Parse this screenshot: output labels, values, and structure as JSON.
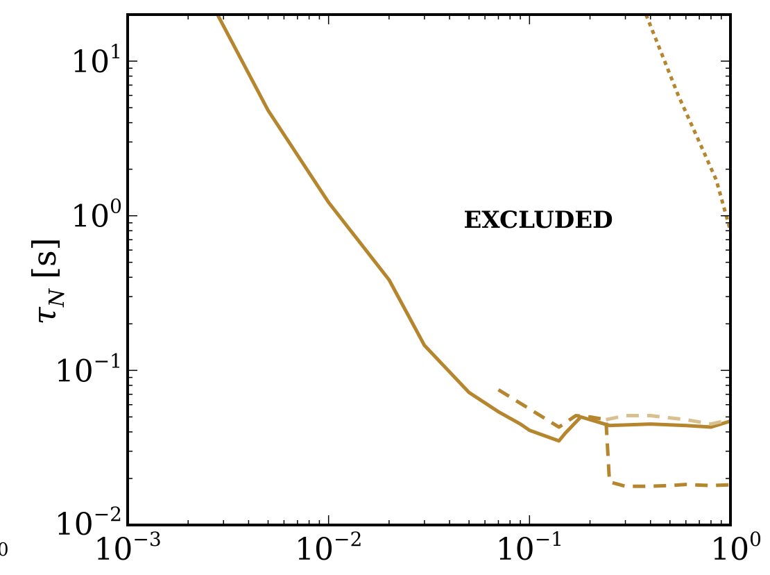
{
  "chart_data": {
    "type": "line",
    "xscale": "log",
    "yscale": "log",
    "xlim": [
      0.001,
      1
    ],
    "ylim": [
      0.01,
      20
    ],
    "xticks": [
      {
        "value": 0.001,
        "base": "10",
        "exp": "−3"
      },
      {
        "value": 0.01,
        "base": "10",
        "exp": "−2"
      },
      {
        "value": 0.1,
        "base": "10",
        "exp": "−1"
      },
      {
        "value": 1,
        "base": "10",
        "exp": "0"
      }
    ],
    "yticks": [
      {
        "value": 0.01,
        "base": "10",
        "exp": "−2"
      },
      {
        "value": 0.1,
        "base": "10",
        "exp": "−1"
      },
      {
        "value": 1,
        "base": "10",
        "exp": "0"
      },
      {
        "value": 10,
        "base": "10",
        "exp": "1"
      }
    ],
    "ylabel_symbol": "τ",
    "ylabel_subscript": "N",
    "ylabel_unit": "[s]",
    "clipped_left_tick": "0",
    "annotation": "EXCLUDED",
    "colors": {
      "main": "#b5862e",
      "light": "#d9c08f",
      "axis": "#000000"
    },
    "series": [
      {
        "style": "solid",
        "color": "#b5862e",
        "points": [
          [
            0.0028,
            20.0
          ],
          [
            0.005,
            4.8
          ],
          [
            0.01,
            1.22
          ],
          [
            0.02,
            0.385
          ],
          [
            0.03,
            0.145
          ],
          [
            0.05,
            0.072
          ],
          [
            0.07,
            0.054
          ],
          [
            0.09,
            0.045
          ],
          [
            0.1,
            0.041
          ],
          [
            0.14,
            0.035
          ],
          [
            0.15,
            0.039
          ],
          [
            0.18,
            0.05
          ],
          [
            0.25,
            0.044
          ],
          [
            0.4,
            0.045
          ],
          [
            0.6,
            0.044
          ],
          [
            0.8,
            0.043
          ],
          [
            1.0,
            0.047
          ]
        ]
      },
      {
        "style": "dashed",
        "color": "#b5862e",
        "points": [
          [
            0.07,
            0.075
          ],
          [
            0.14,
            0.043
          ],
          [
            0.17,
            0.051
          ],
          [
            0.2,
            0.05
          ],
          [
            0.24,
            0.048
          ],
          [
            0.25,
            0.019
          ],
          [
            0.3,
            0.0178
          ],
          [
            0.4,
            0.0178
          ],
          [
            0.5,
            0.018
          ],
          [
            0.6,
            0.0183
          ],
          [
            0.8,
            0.018
          ],
          [
            1.0,
            0.0182
          ]
        ]
      },
      {
        "style": "dashed",
        "color": "#d9c08f",
        "points": [
          [
            0.24,
            0.048
          ],
          [
            0.3,
            0.051
          ],
          [
            0.4,
            0.051
          ],
          [
            0.6,
            0.048
          ],
          [
            0.8,
            0.045
          ],
          [
            1.0,
            0.048
          ]
        ]
      },
      {
        "style": "dotted",
        "color": "#b5862e",
        "points": [
          [
            0.38,
            20.0
          ],
          [
            0.55,
            6.0
          ],
          [
            0.7,
            3.0
          ],
          [
            0.85,
            1.7
          ],
          [
            1.0,
            0.8
          ]
        ]
      }
    ]
  }
}
